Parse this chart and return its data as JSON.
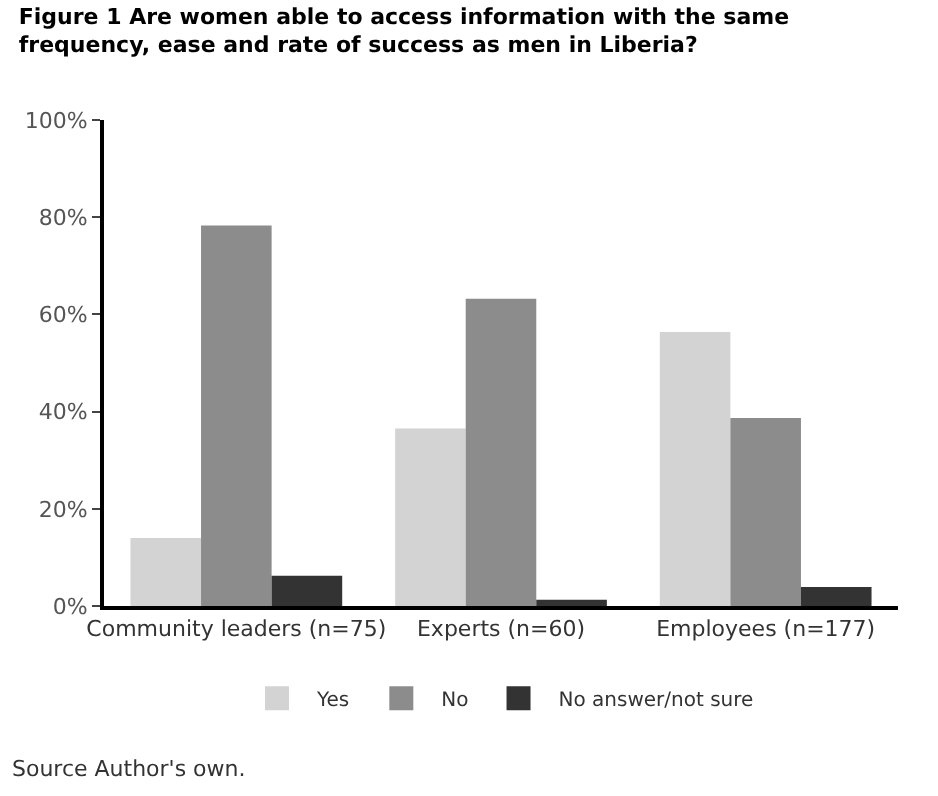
{
  "chart_data": {
    "type": "bar",
    "title": "Figure 1 Are women able to access information with the same frequency, ease and rate of success as men in Liberia?",
    "categories": [
      "Community leaders (n=75)",
      "Experts (n=60)",
      "Employees (n=177)"
    ],
    "series": [
      {
        "name": "Yes",
        "color": "#d3d3d3",
        "values": [
          14,
          36.5,
          56.4
        ]
      },
      {
        "name": "No",
        "color": "#8c8c8c",
        "values": [
          78.3,
          63.2,
          38.7
        ]
      },
      {
        "name": "No answer/not sure",
        "color": "#333333",
        "values": [
          6.2,
          1.3,
          3.9
        ]
      }
    ],
    "ylim": [
      0,
      100
    ],
    "yticks": [
      {
        "value": 0,
        "label": "0%"
      },
      {
        "value": 20,
        "label": "20%"
      },
      {
        "value": 40,
        "label": "40%"
      },
      {
        "value": 60,
        "label": "60%"
      },
      {
        "value": 80,
        "label": "80%"
      },
      {
        "value": 100,
        "label": "100%"
      }
    ],
    "legend": "bottom",
    "annotations": [
      "Source Author's own."
    ]
  }
}
